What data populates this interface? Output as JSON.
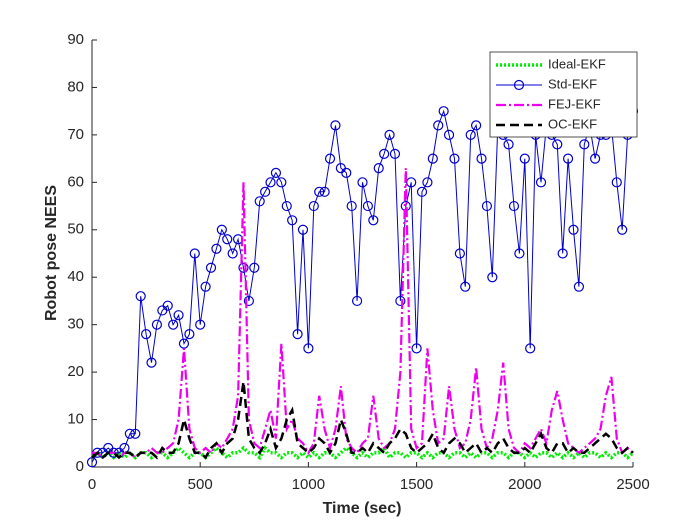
{
  "chart_data": {
    "type": "line",
    "xlabel": "Time (sec)",
    "ylabel": "Robot pose NEES",
    "xlim": [
      0,
      2500
    ],
    "xticks": [
      0,
      500,
      1000,
      1500,
      2000,
      2500
    ],
    "ylim": [
      0,
      90
    ],
    "yticks": [
      0,
      10,
      20,
      30,
      40,
      50,
      60,
      70,
      80,
      90
    ],
    "legend": "upper right",
    "x": [
      0,
      25,
      50,
      75,
      100,
      125,
      150,
      175,
      200,
      225,
      250,
      275,
      300,
      325,
      350,
      375,
      400,
      425,
      450,
      475,
      500,
      525,
      550,
      575,
      600,
      625,
      650,
      675,
      700,
      725,
      750,
      775,
      800,
      825,
      850,
      875,
      900,
      925,
      950,
      975,
      1000,
      1025,
      1050,
      1075,
      1100,
      1125,
      1150,
      1175,
      1200,
      1225,
      1250,
      1275,
      1300,
      1325,
      1350,
      1375,
      1400,
      1425,
      1450,
      1475,
      1500,
      1525,
      1550,
      1575,
      1600,
      1625,
      1650,
      1675,
      1700,
      1725,
      1750,
      1775,
      1800,
      1825,
      1850,
      1875,
      1900,
      1925,
      1950,
      1975,
      2000,
      2025,
      2050,
      2075,
      2100,
      2125,
      2150,
      2175,
      2200,
      2225,
      2250,
      2275,
      2300,
      2325,
      2350,
      2375,
      2400,
      2425,
      2450,
      2475,
      2500
    ],
    "series": [
      {
        "name": "Ideal-EKF",
        "color": "#00ee00",
        "linestyle": "dotted",
        "values": [
          2,
          3,
          2,
          3,
          2,
          3,
          2,
          3,
          2,
          3,
          3,
          2,
          3,
          3,
          2,
          3,
          4,
          3,
          2,
          3,
          3,
          2,
          3,
          4,
          3,
          2,
          3,
          3,
          4,
          3,
          3,
          2,
          4,
          3,
          3,
          2,
          3,
          3,
          2,
          3,
          2,
          3,
          2,
          3,
          3,
          2,
          3,
          4,
          3,
          2,
          3,
          2,
          3,
          3,
          4,
          2,
          3,
          3,
          2,
          3,
          3,
          2,
          3,
          2,
          3,
          3,
          2,
          3,
          3,
          2,
          3,
          2,
          3,
          3,
          2,
          3,
          3,
          2,
          3,
          3,
          2,
          3,
          2,
          3,
          3,
          2,
          3,
          2,
          3,
          2,
          3,
          2,
          3,
          3,
          2,
          3,
          2,
          3,
          3,
          2,
          3
        ]
      },
      {
        "name": "Std-EKF",
        "color": "#0000cc",
        "linestyle": "solid",
        "marker": "circle",
        "values": [
          1,
          3,
          3,
          4,
          3,
          3,
          4,
          7,
          7,
          36,
          28,
          22,
          30,
          33,
          34,
          30,
          32,
          26,
          28,
          45,
          30,
          38,
          42,
          46,
          50,
          48,
          45,
          48,
          42,
          35,
          42,
          56,
          58,
          60,
          62,
          60,
          55,
          52,
          28,
          50,
          25,
          55,
          58,
          58,
          65,
          72,
          63,
          62,
          55,
          35,
          60,
          55,
          52,
          63,
          66,
          70,
          66,
          35,
          55,
          60,
          25,
          58,
          60,
          65,
          72,
          75,
          70,
          65,
          45,
          38,
          70,
          72,
          65,
          55,
          40,
          72,
          70,
          68,
          55,
          45,
          65,
          25,
          70,
          60,
          72,
          70,
          68,
          45,
          65,
          50,
          38,
          68,
          72,
          65,
          70,
          70,
          72,
          60,
          50,
          70,
          75
        ]
      },
      {
        "name": "FEJ-EKF",
        "color": "#ee00ee",
        "linestyle": "dashdot",
        "values": [
          3,
          3,
          2,
          3,
          3,
          2,
          3,
          3,
          2,
          3,
          3,
          4,
          3,
          3,
          4,
          5,
          10,
          25,
          8,
          4,
          3,
          4,
          3,
          5,
          4,
          6,
          8,
          15,
          60,
          10,
          5,
          4,
          8,
          12,
          6,
          26,
          8,
          10,
          6,
          5,
          3,
          5,
          15,
          8,
          4,
          8,
          17,
          6,
          4,
          3,
          5,
          6,
          15,
          6,
          4,
          5,
          8,
          20,
          63,
          8,
          4,
          5,
          25,
          12,
          5,
          6,
          17,
          8,
          4,
          5,
          10,
          21,
          8,
          4,
          6,
          12,
          22,
          8,
          4,
          3,
          5,
          4,
          6,
          8,
          5,
          12,
          16,
          10,
          5,
          4,
          3,
          4,
          5,
          6,
          8,
          15,
          19,
          6,
          3,
          4,
          3
        ]
      },
      {
        "name": "OC-EKF",
        "color": "#000000",
        "linestyle": "dashed",
        "values": [
          2,
          3,
          2,
          3,
          3,
          2,
          3,
          3,
          2,
          3,
          3,
          3,
          2,
          4,
          3,
          3,
          5,
          10,
          6,
          3,
          3,
          2,
          4,
          5,
          3,
          5,
          6,
          10,
          18,
          6,
          4,
          3,
          5,
          8,
          4,
          6,
          10,
          12,
          5,
          4,
          3,
          4,
          6,
          5,
          3,
          5,
          10,
          7,
          3,
          3,
          4,
          3,
          5,
          4,
          3,
          5,
          6,
          8,
          7,
          4,
          3,
          4,
          5,
          7,
          4,
          3,
          5,
          6,
          5,
          3,
          4,
          5,
          3,
          4,
          3,
          5,
          6,
          4,
          3,
          3,
          4,
          3,
          5,
          7,
          4,
          3,
          5,
          5,
          3,
          4,
          3,
          3,
          4,
          5,
          6,
          7,
          6,
          4,
          3,
          4,
          3
        ]
      }
    ]
  }
}
